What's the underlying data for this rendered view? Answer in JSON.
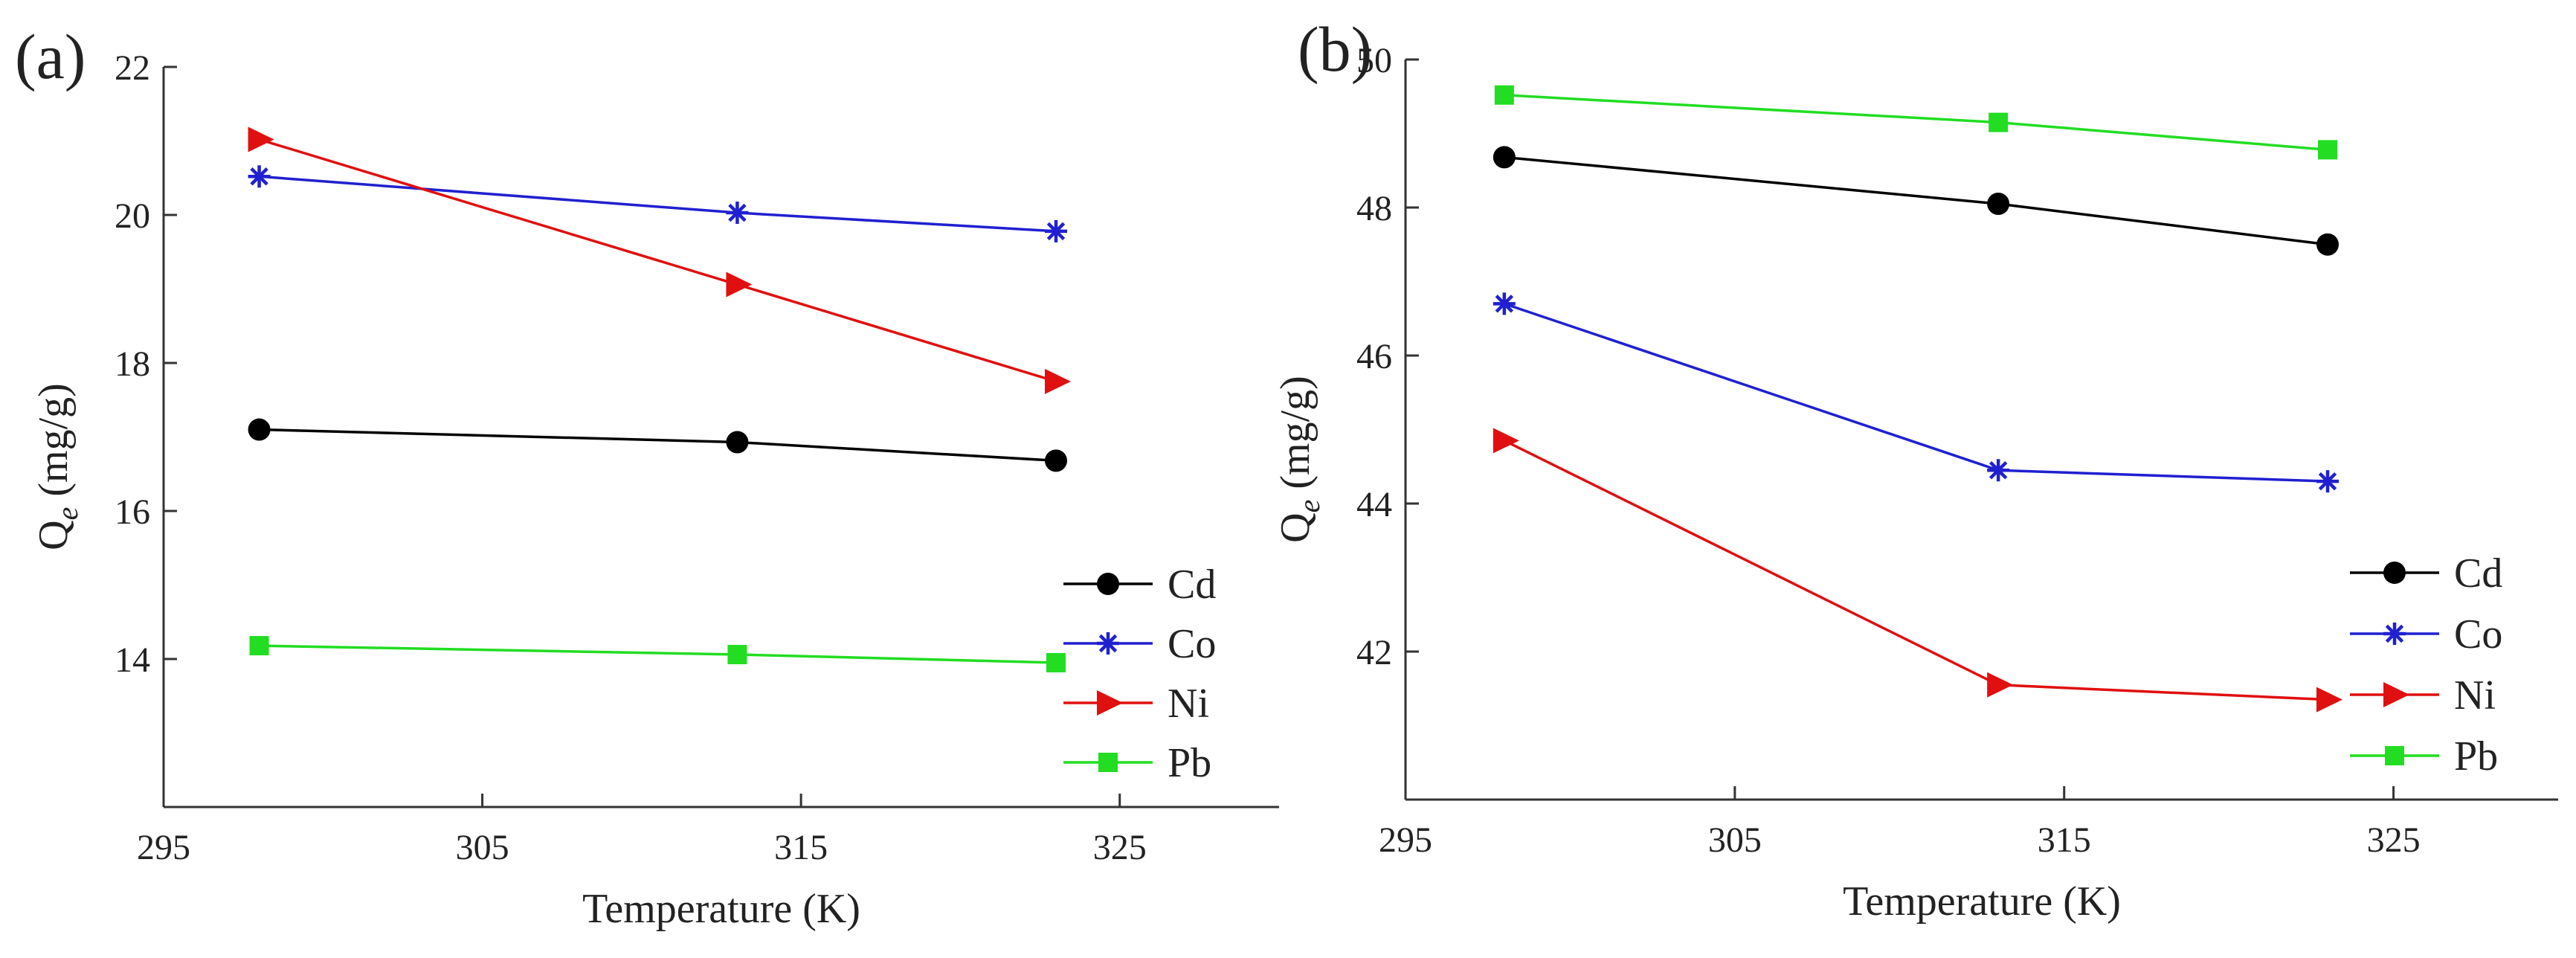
{
  "chart_data": [
    {
      "type": "line",
      "panel_label": "(a)",
      "xlabel": "Temperature (K)",
      "ylabel_main": "Q",
      "ylabel_sub": "e",
      "ylabel_unit": "(mg/g)",
      "x": [
        298,
        313,
        323
      ],
      "xlim": [
        295,
        330
      ],
      "ylim": [
        12,
        22
      ],
      "xticks": [
        295,
        305,
        315,
        325
      ],
      "yticks": [
        14,
        16,
        18,
        20,
        22
      ],
      "legend_position": "bottom-right",
      "series": [
        {
          "name": "Cd",
          "color": "#000000",
          "marker": "circle",
          "values": [
            17.1,
            16.93,
            16.68
          ]
        },
        {
          "name": "Co",
          "color": "#2020d0",
          "marker": "star",
          "values": [
            20.52,
            20.03,
            19.78
          ]
        },
        {
          "name": "Ni",
          "color": "#e01010",
          "marker": "triangle-right",
          "values": [
            21.02,
            19.06,
            17.75
          ]
        },
        {
          "name": "Pb",
          "color": "#22dd22",
          "marker": "square",
          "values": [
            14.18,
            14.06,
            13.95
          ]
        }
      ]
    },
    {
      "type": "line",
      "panel_label": "(b)",
      "xlabel": "Temperature (K)",
      "ylabel_main": "Q",
      "ylabel_sub": "e",
      "ylabel_unit": "(mg/g)",
      "x": [
        298,
        313,
        323
      ],
      "xlim": [
        295,
        330
      ],
      "ylim": [
        40,
        50
      ],
      "xticks": [
        295,
        305,
        315,
        325
      ],
      "yticks": [
        42,
        44,
        46,
        48,
        50
      ],
      "legend_position": "bottom-right",
      "series": [
        {
          "name": "Cd",
          "color": "#000000",
          "marker": "circle",
          "values": [
            48.68,
            48.05,
            47.5
          ]
        },
        {
          "name": "Co",
          "color": "#2020d0",
          "marker": "star",
          "values": [
            46.7,
            44.45,
            44.3
          ]
        },
        {
          "name": "Ni",
          "color": "#e01010",
          "marker": "triangle-right",
          "values": [
            44.85,
            41.55,
            41.35
          ]
        },
        {
          "name": "Pb",
          "color": "#22dd22",
          "marker": "square",
          "values": [
            49.52,
            49.15,
            48.78
          ]
        }
      ]
    }
  ]
}
